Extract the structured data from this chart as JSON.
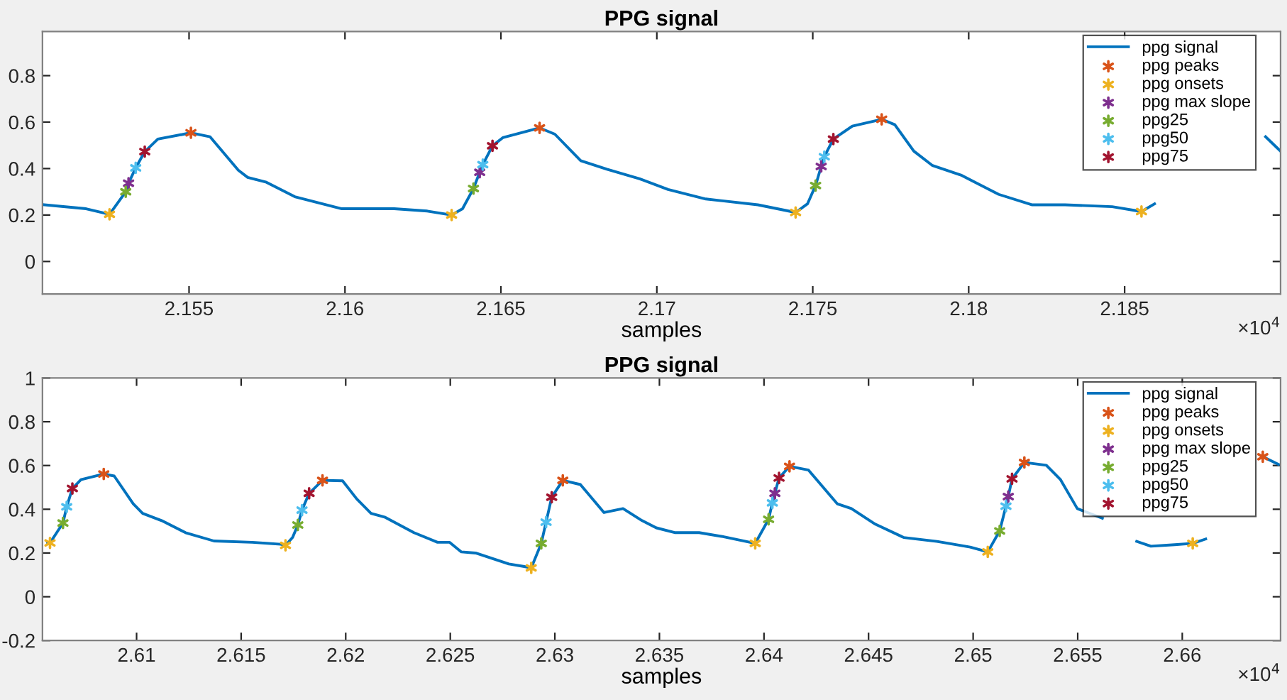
{
  "chart_data": [
    {
      "type": "line",
      "title": "PPG signal",
      "xlabel": "samples",
      "annotations": [
        "×10$^{4}$"
      ],
      "legend": "top right",
      "grid": false,
      "xlim": [
        2.1503,
        2.19
      ],
      "ylim": [
        -0.14,
        0.99
      ],
      "xticks": [
        2.155,
        2.16,
        2.165,
        2.17,
        2.175,
        2.18,
        2.185
      ],
      "yticks": [
        0,
        0.2,
        0.4,
        0.6,
        0.8
      ],
      "series": [
        {
          "name": "ppg signal",
          "marker": "none",
          "line_style": "solid",
          "color": "#0072bd",
          "x": [
            2.15036,
            2.1517,
            2.15245,
            2.15297,
            2.15306,
            2.15329,
            2.15358,
            2.154,
            2.15506,
            2.15567,
            2.15658,
            2.15688,
            2.15748,
            2.15839,
            2.1599,
            2.16158,
            2.16264,
            2.16342,
            2.16377,
            2.16412,
            2.16432,
            2.16442,
            2.16473,
            2.16506,
            2.16624,
            2.16673,
            2.16756,
            2.1684,
            2.16945,
            2.17036,
            2.17157,
            2.17324,
            2.17445,
            2.17483,
            2.17509,
            2.17527,
            2.17537,
            2.17566,
            2.17627,
            2.17721,
            2.17763,
            2.17824,
            2.17884,
            2.17975,
            2.18096,
            2.18202,
            2.18309,
            2.1846,
            2.18554,
            2.18596,
            2.1877,
            2.18952,
            2.19
          ],
          "values": [
            0.244,
            0.227,
            0.203,
            0.3,
            0.337,
            0.403,
            0.473,
            0.527,
            0.554,
            0.537,
            0.393,
            0.362,
            0.341,
            0.279,
            0.227,
            0.227,
            0.217,
            0.2,
            0.227,
            0.314,
            0.384,
            0.417,
            0.498,
            0.533,
            0.575,
            0.548,
            0.434,
            0.397,
            0.356,
            0.31,
            0.269,
            0.244,
            0.211,
            0.248,
            0.327,
            0.409,
            0.451,
            0.527,
            0.583,
            0.612,
            0.589,
            0.475,
            0.413,
            0.372,
            0.289,
            0.244,
            0.244,
            0.236,
            0.215,
            0.248,
            null,
            0.537,
            0.475
          ]
        },
        {
          "name": "ppg peaks",
          "type": "scatter",
          "marker": "cross",
          "color": "#d95319",
          "x": [
            2.15506,
            2.16624,
            2.17721
          ],
          "values": [
            0.554,
            0.575,
            0.612
          ]
        },
        {
          "name": "ppg onsets",
          "type": "scatter",
          "marker": "cross",
          "color": "#edb120",
          "x": [
            2.15245,
            2.16342,
            2.17445,
            2.18554
          ],
          "values": [
            0.203,
            0.2,
            0.211,
            0.215
          ]
        },
        {
          "name": "ppg max slope",
          "type": "scatter",
          "marker": "cross",
          "color": "#7e2f8e",
          "x": [
            2.15306,
            2.16432,
            2.17527
          ],
          "values": [
            0.337,
            0.384,
            0.409
          ]
        },
        {
          "name": "ppg25",
          "type": "scatter",
          "marker": "cross",
          "color": "#77ac30",
          "x": [
            2.15297,
            2.16412,
            2.17509
          ],
          "values": [
            0.3,
            0.314,
            0.327
          ]
        },
        {
          "name": "ppg50",
          "type": "scatter",
          "marker": "cross",
          "color": "#4dbeee",
          "x": [
            2.15329,
            2.16442,
            2.17537
          ],
          "values": [
            0.403,
            0.417,
            0.451
          ]
        },
        {
          "name": "ppg75",
          "type": "scatter",
          "marker": "cross",
          "color": "#a2142f",
          "x": [
            2.15358,
            2.16473,
            2.17566
          ],
          "values": [
            0.473,
            0.498,
            0.527
          ]
        }
      ]
    },
    {
      "type": "line",
      "title": "PPG signal",
      "xlabel": "samples",
      "annotations": [
        "×10$^{4}$"
      ],
      "legend": "top right",
      "grid": false,
      "xlim": [
        2.6055,
        2.6647
      ],
      "ylim": [
        -0.2,
        1
      ],
      "xticks": [
        2.61,
        2.615,
        2.62,
        2.625,
        2.63,
        2.635,
        2.64,
        2.645,
        2.65,
        2.655,
        2.66
      ],
      "yticks": [
        -0.2,
        0,
        0.2,
        0.4,
        0.6,
        0.8,
        1
      ],
      "series": [
        {
          "name": "ppg signal",
          "marker": "none",
          "line_style": "solid",
          "color": "#0072bd",
          "x": [
            2.60575,
            2.60586,
            2.60648,
            2.60666,
            2.60693,
            2.60734,
            2.60843,
            2.60893,
            2.60984,
            2.61029,
            2.6112,
            2.61234,
            2.6137,
            2.61553,
            2.61689,
            2.61712,
            2.61746,
            2.61771,
            2.61791,
            2.61825,
            2.61889,
            2.61985,
            2.62053,
            2.62121,
            2.62189,
            2.62326,
            2.62439,
            2.62496,
            2.62553,
            2.62621,
            2.6278,
            2.62849,
            2.62887,
            2.62935,
            2.62958,
            2.62985,
            2.63038,
            2.63122,
            2.6319,
            2.63235,
            2.63326,
            2.63417,
            2.63485,
            2.63576,
            2.6369,
            2.63804,
            2.63958,
            2.64022,
            2.6404,
            2.64052,
            2.64072,
            2.64122,
            2.64213,
            2.6435,
            2.64418,
            2.64532,
            2.64668,
            2.64827,
            2.64986,
            2.6507,
            2.65127,
            2.65157,
            2.65168,
            2.65186,
            2.65245,
            2.6535,
            2.65418,
            2.65498,
            2.65618,
            2.657,
            2.65782,
            2.6585,
            2.65964,
            2.6605,
            2.66112,
            2.6625,
            2.66385,
            2.6646
          ],
          "values": [
            0.244,
            0.246,
            0.337,
            0.411,
            0.495,
            0.535,
            0.561,
            0.552,
            0.425,
            0.381,
            0.348,
            0.293,
            0.255,
            0.249,
            0.24,
            0.235,
            0.271,
            0.328,
            0.396,
            0.473,
            0.532,
            0.53,
            0.447,
            0.381,
            0.363,
            0.293,
            0.249,
            0.249,
            0.205,
            0.2,
            0.15,
            0.139,
            0.132,
            0.244,
            0.341,
            0.455,
            0.532,
            0.513,
            0.436,
            0.385,
            0.403,
            0.348,
            0.315,
            0.293,
            0.293,
            0.275,
            0.244,
            0.354,
            0.429,
            0.473,
            0.543,
            0.596,
            0.579,
            0.425,
            0.403,
            0.332,
            0.271,
            0.253,
            0.227,
            0.205,
            0.301,
            0.414,
            0.458,
            0.539,
            0.614,
            0.601,
            0.535,
            0.403,
            0.359,
            null,
            0.253,
            0.231,
            0.238,
            0.244,
            0.264,
            null,
            0.64,
            0.605
          ]
        },
        {
          "name": "ppg peaks",
          "type": "scatter",
          "marker": "cross",
          "color": "#d95319",
          "x": [
            2.60843,
            2.61889,
            2.63038,
            2.64122,
            2.65245,
            2.66385
          ],
          "values": [
            0.561,
            0.532,
            0.532,
            0.596,
            0.614,
            0.64
          ]
        },
        {
          "name": "ppg onsets",
          "type": "scatter",
          "marker": "cross",
          "color": "#edb120",
          "x": [
            2.60586,
            2.61712,
            2.62887,
            2.63958,
            2.6507,
            2.6605
          ],
          "values": [
            0.246,
            0.235,
            0.132,
            0.244,
            0.205,
            0.244
          ]
        },
        {
          "name": "ppg max slope",
          "type": "scatter",
          "marker": "cross",
          "color": "#7e2f8e",
          "x": [
            2.64052,
            2.65168
          ],
          "values": [
            0.473,
            0.458
          ]
        },
        {
          "name": "ppg25",
          "type": "scatter",
          "marker": "cross",
          "color": "#77ac30",
          "x": [
            2.60648,
            2.61771,
            2.62935,
            2.64022,
            2.65127
          ],
          "values": [
            0.337,
            0.328,
            0.244,
            0.354,
            0.301
          ]
        },
        {
          "name": "ppg50",
          "type": "scatter",
          "marker": "cross",
          "color": "#4dbeee",
          "x": [
            2.60666,
            2.61791,
            2.62958,
            2.6404,
            2.65157
          ],
          "values": [
            0.411,
            0.396,
            0.341,
            0.429,
            0.414
          ]
        },
        {
          "name": "ppg75",
          "type": "scatter",
          "marker": "cross",
          "color": "#a2142f",
          "x": [
            2.60693,
            2.61825,
            2.62985,
            2.64072,
            2.65186
          ],
          "values": [
            0.495,
            0.473,
            0.455,
            0.543,
            0.539
          ]
        }
      ]
    }
  ]
}
